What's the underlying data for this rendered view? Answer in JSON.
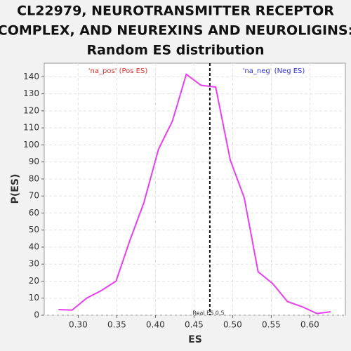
{
  "chart_data": {
    "type": "line",
    "title": [
      "CL22979, NEUROTRANSMITTER RECEPTOR",
      "COMPLEX, AND NEUREXINS AND NEUROLIGINS:",
      "Random ES distribution"
    ],
    "x_label": "ES",
    "y_label": "P(ES)",
    "x": [
      0.2745,
      0.292,
      0.311,
      0.33,
      0.349,
      0.367,
      0.385,
      0.404,
      0.422,
      0.44,
      0.459,
      0.478,
      0.497,
      0.515,
      0.533,
      0.552,
      0.571,
      0.59,
      0.609,
      0.627
    ],
    "series": [
      {
        "name": "P(ES)",
        "color": "#e840f0",
        "values": [
          3.3,
          3,
          10,
          14.5,
          20,
          44,
          66,
          97.5,
          114,
          141.5,
          135,
          134,
          91,
          69,
          25.5,
          18.5,
          8,
          5,
          1,
          2
        ]
      }
    ],
    "xlim": [
      0.256,
      0.646
    ],
    "ylim": [
      0,
      148
    ],
    "xticks": [
      {
        "value": 0.3,
        "label": "0.30"
      },
      0.35,
      {
        "value": 0.4,
        "label": "0.40"
      },
      0.45,
      {
        "value": 0.5,
        "label": "0.50"
      },
      0.55,
      {
        "value": 0.6,
        "label": "0.60"
      }
    ],
    "yticks": [
      0,
      10,
      20,
      30,
      40,
      50,
      60,
      70,
      80,
      90,
      100,
      110,
      120,
      130,
      140
    ],
    "grid": true,
    "real_es": 0.4705,
    "real_es_label": "Real ES 0.5",
    "pos_label": "'na_pos' (Pos ES)",
    "neg_label": "'na_neg' (Neg ES)"
  }
}
